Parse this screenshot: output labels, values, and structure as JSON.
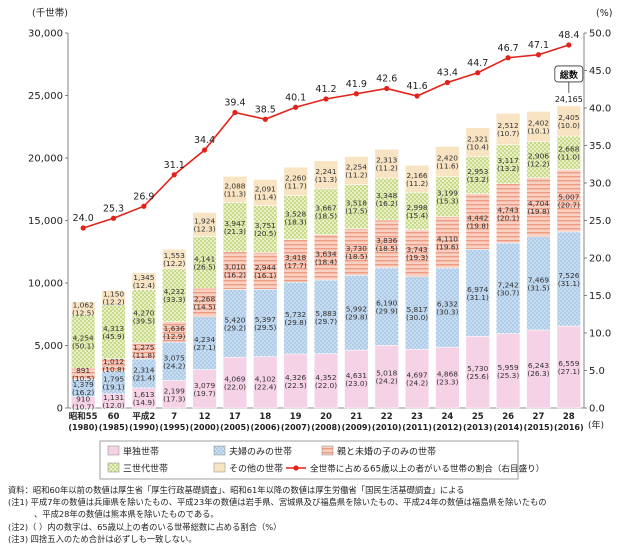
{
  "chart_data": {
    "type": "bar",
    "categories": [
      [
        "昭和55",
        "(1980)"
      ],
      [
        "60",
        "(1985)"
      ],
      [
        "平成2",
        "(1990)"
      ],
      [
        "7",
        "(1995)"
      ],
      [
        "12",
        "(2000)"
      ],
      [
        "17",
        "(2005)"
      ],
      [
        "18",
        "(2006)"
      ],
      [
        "19",
        "(2007)"
      ],
      [
        "20",
        "(2008)"
      ],
      [
        "21",
        "(2009)"
      ],
      [
        "22",
        "(2010)"
      ],
      [
        "23",
        "(2011)"
      ],
      [
        "24",
        "(2012)"
      ],
      [
        "25",
        "(2013)"
      ],
      [
        "26",
        "(2014)"
      ],
      [
        "27",
        "(2015)"
      ],
      [
        "28",
        "(2016)"
      ]
    ],
    "series": [
      {
        "name": "単独世帯",
        "color": "#f6d2e6",
        "pattern": "solid",
        "values": [
          910,
          1131,
          1613,
          2199,
          3079,
          4069,
          4102,
          4326,
          4352,
          4631,
          5018,
          4697,
          4868,
          5730,
          5959,
          6243,
          6559
        ],
        "shares": [
          "10.7",
          "12.0",
          "14.9",
          "17.3",
          "19.7",
          "22.0",
          "22.4",
          "22.5",
          "22.0",
          "23.0",
          "24.2",
          "24.2",
          "23.3",
          "25.6",
          "25.3",
          "26.3",
          "27.1"
        ]
      },
      {
        "name": "夫婦のみの世帯",
        "color": "#c9def1",
        "pattern": "dots",
        "values": [
          1379,
          1795,
          2314,
          3075,
          4234,
          5420,
          5397,
          5732,
          5883,
          5992,
          6190,
          5817,
          6332,
          6974,
          7242,
          7469,
          7526
        ],
        "shares": [
          "16.2",
          "19.1",
          "21.4",
          "24.2",
          "27.1",
          "29.2",
          "29.5",
          "29.8",
          "29.7",
          "29.8",
          "29.9",
          "30.0",
          "30.3",
          "31.1",
          "30.7",
          "31.5",
          "31.1"
        ]
      },
      {
        "name": "親と未婚の子のみの世帯",
        "color": "#f6c3b4",
        "pattern": "hstripe",
        "values": [
          891,
          1012,
          1275,
          1636,
          2268,
          3010,
          2944,
          3418,
          3634,
          3730,
          3836,
          3743,
          4110,
          4442,
          4743,
          4704,
          5007
        ],
        "shares": [
          "10.5",
          "10.8",
          "11.8",
          "12.9",
          "14.5",
          "16.2",
          "16.1",
          "17.7",
          "18.4",
          "18.5",
          "18.5",
          "19.3",
          "19.6",
          "19.8",
          "20.1",
          "19.8",
          "20.7"
        ]
      },
      {
        "name": "三世代世帯",
        "color": "#e7efbf",
        "pattern": "checker",
        "values": [
          4254,
          4313,
          4270,
          4232,
          4141,
          3947,
          3751,
          3528,
          3667,
          3518,
          3348,
          2998,
          3199,
          2953,
          3117,
          2906,
          2668
        ],
        "shares": [
          "50.1",
          "45.9",
          "39.5",
          "33.3",
          "26.5",
          "21.3",
          "20.5",
          "18.3",
          "18.5",
          "17.5",
          "16.2",
          "15.4",
          "15.3",
          "13.2",
          "13.2",
          "12.2",
          "11.0"
        ]
      },
      {
        "name": "その他の世帯",
        "color": "#f8e4c2",
        "pattern": "solid",
        "values": [
          1062,
          1150,
          1345,
          1553,
          1924,
          2088,
          2091,
          2260,
          2241,
          2254,
          2313,
          2166,
          2420,
          2321,
          2512,
          2402,
          2405
        ],
        "shares": [
          "12.5",
          "12.2",
          "12.4",
          "12.2",
          "12.3",
          "11.3",
          "11.4",
          "11.7",
          "11.3",
          "11.2",
          "11.2",
          "11.2",
          "11.6",
          "10.4",
          "10.7",
          "10.1",
          "10.0"
        ]
      }
    ],
    "line_series": {
      "name": "全世帯に占める65歳以上の者がいる世帯の割合（右目盛り）",
      "color": "#e2231a",
      "values": [
        24.0,
        25.3,
        26.9,
        31.1,
        34.4,
        39.4,
        38.5,
        40.1,
        41.2,
        41.9,
        42.6,
        41.6,
        43.4,
        44.7,
        46.7,
        47.1,
        48.4
      ],
      "labels": [
        "24.0",
        "25.3",
        "26.9",
        "31.1",
        "34.4",
        "39.4",
        "38.5",
        "40.1",
        "41.2",
        "41.9",
        "42.6",
        "41.6",
        "43.4",
        "44.7",
        "46.7",
        "47.1",
        "48.4"
      ]
    },
    "total_callout": {
      "label": "総数",
      "value": "24,165"
    },
    "y_left": {
      "unit": "(千世帯)",
      "ylim": [
        0,
        30000
      ],
      "ticks": [
        "0",
        "5,000",
        "10,000",
        "15,000",
        "20,000",
        "25,000",
        "30,000"
      ]
    },
    "y_right": {
      "unit": "(%)",
      "ylim": [
        0,
        50
      ],
      "ticks": [
        "0.0",
        "5.0",
        "10.0",
        "15.0",
        "20.0",
        "25.0",
        "30.0",
        "35.0",
        "40.0",
        "45.0",
        "50.0"
      ]
    },
    "x_unit": "(年)",
    "grid": false,
    "legend_position": "bottom"
  },
  "notes": [
    "資料：昭和60年以前の数値は厚生省「厚生行政基礎調査」、昭和61年以降の数値は厚生労働省「国民生活基礎調査」による",
    "(注1) 平成7年の数値は兵庫県を除いたもの、平成23年の数値は岩手県、宮城県及び福島県を除いたもの、平成24年の数値は福島県を除いたもの",
    "、平成28年の数値は熊本県を除いたものである。",
    "(注2)（ ）内の数字は、65歳以上の者のいる世帯総数に占める割合（%）",
    "(注3) 四捨五入のため合計は必ずしも一致しない。"
  ]
}
